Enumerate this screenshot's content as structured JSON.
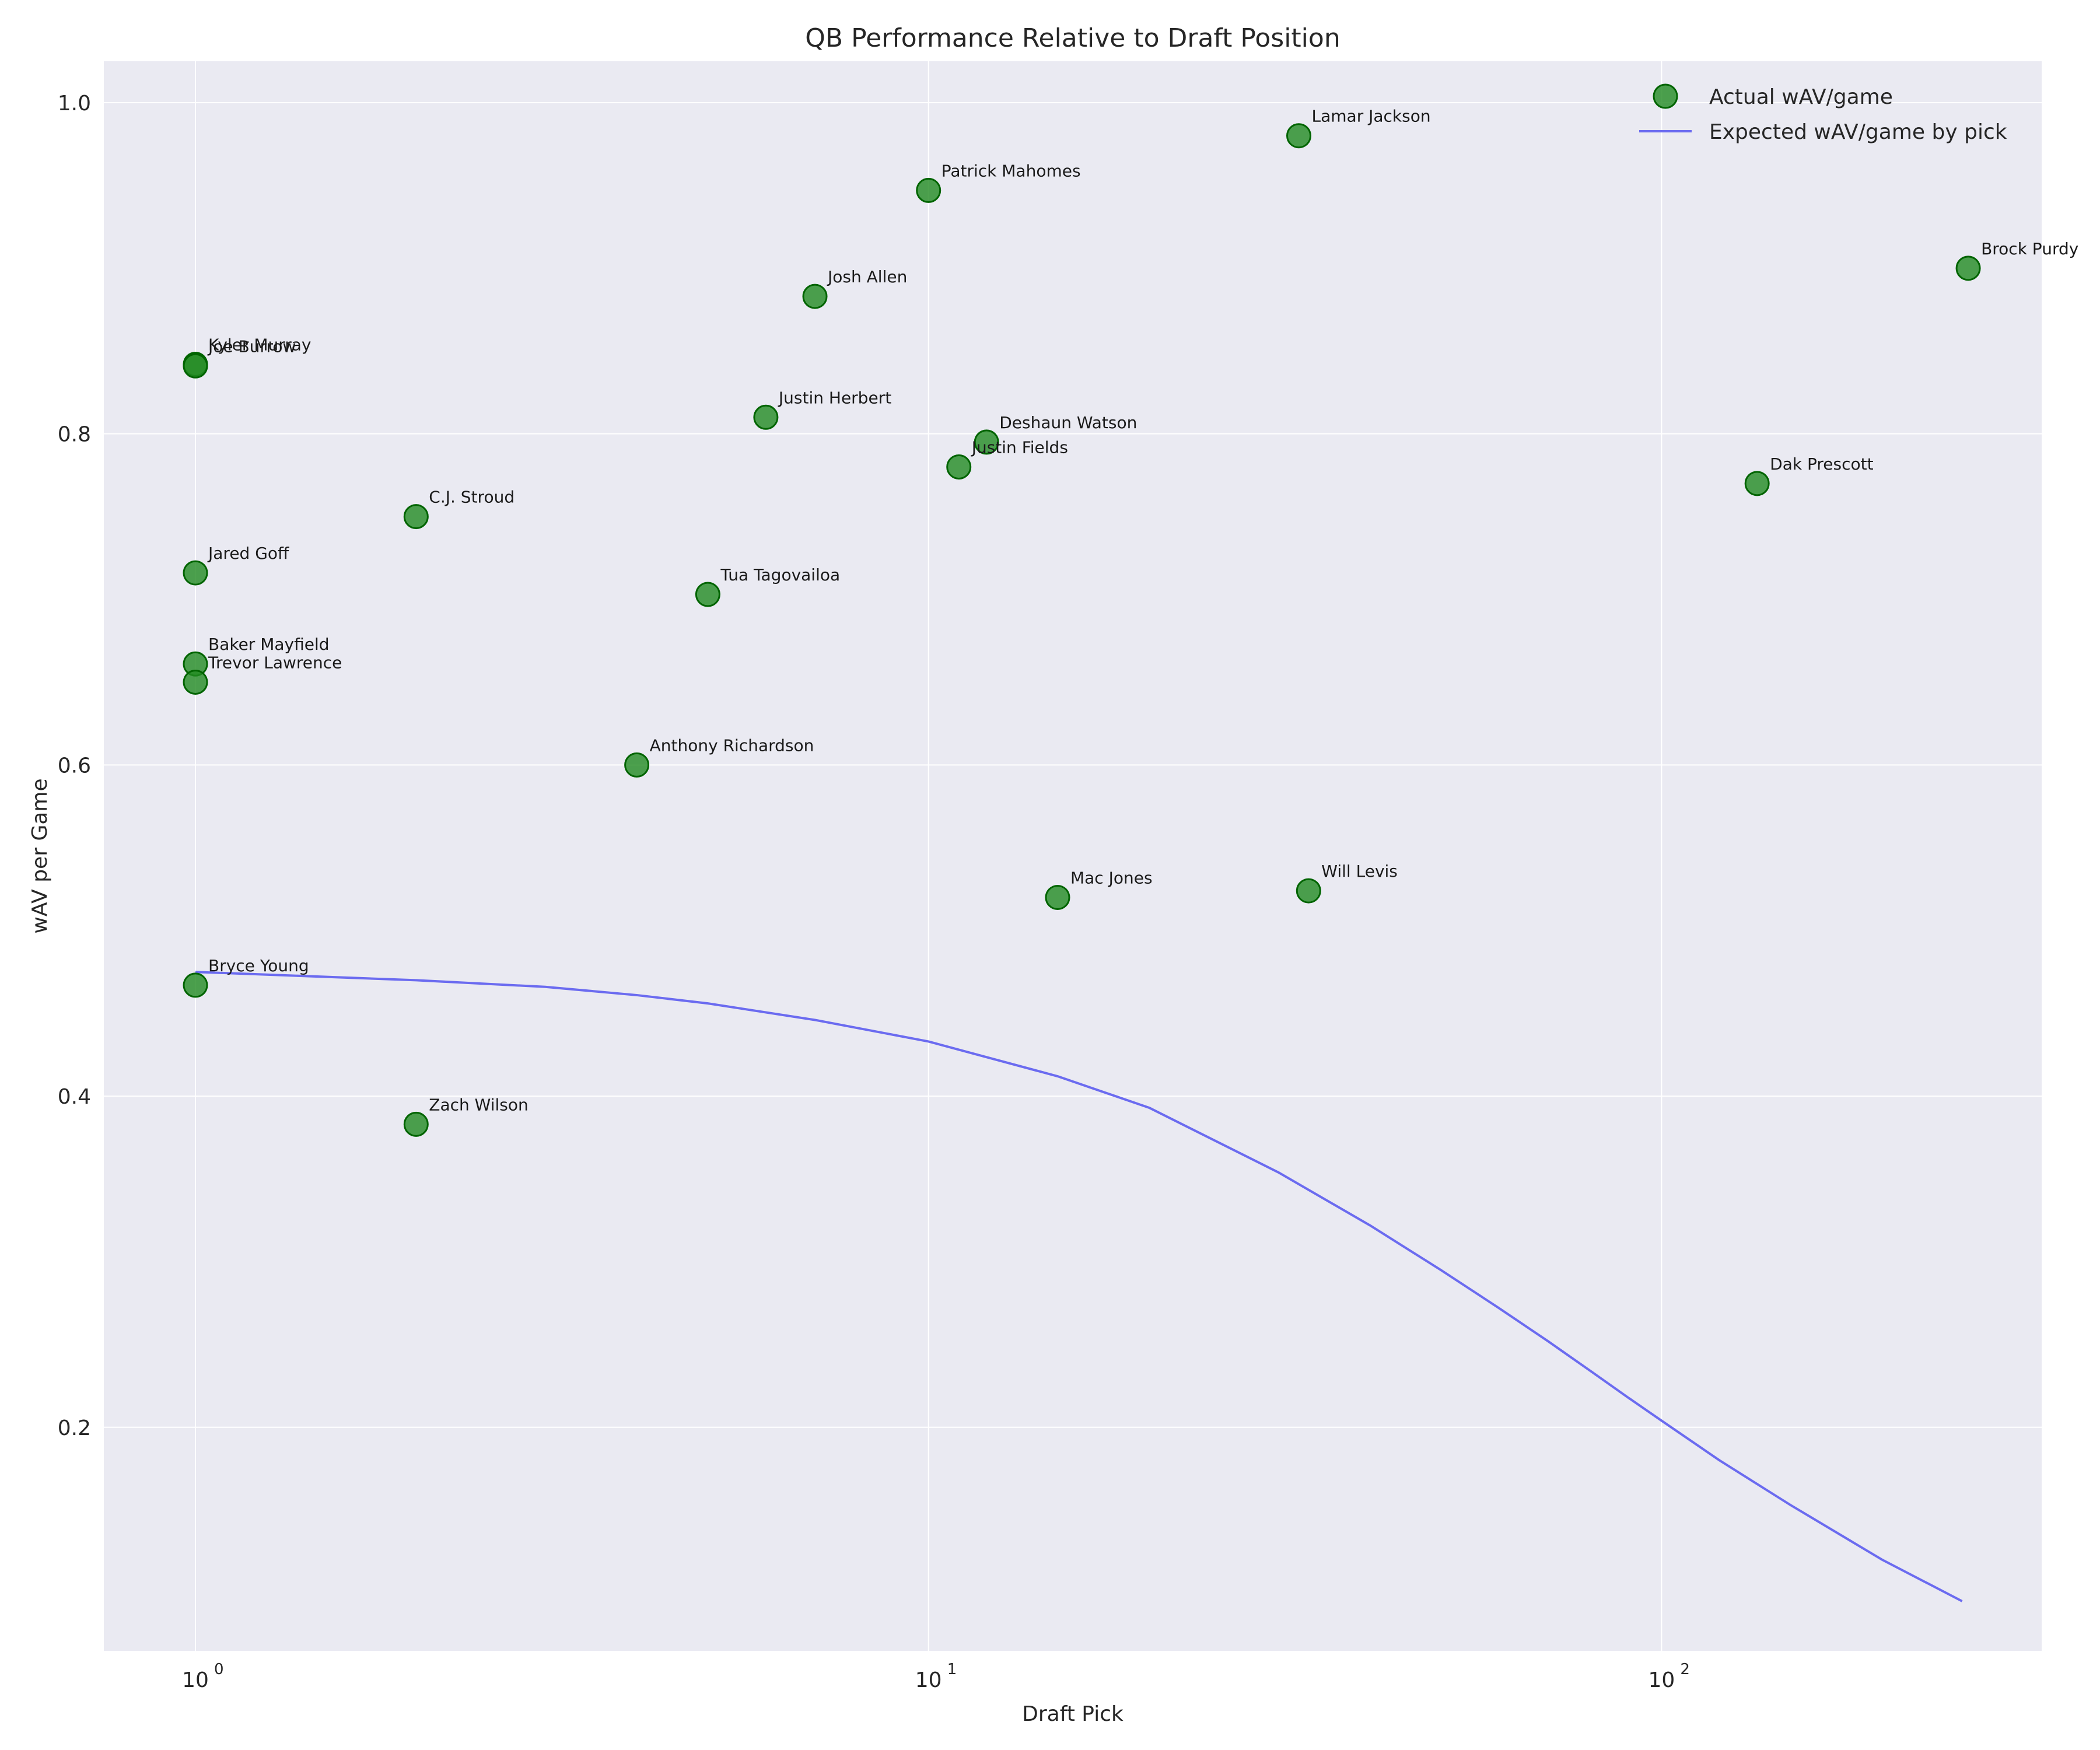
{
  "chart_data": {
    "type": "scatter",
    "title": "QB Performance Relative to Draft Position",
    "xlabel": "Draft Pick",
    "ylabel": "wAV per Game",
    "x_scale": "log",
    "xlim": [
      0.75,
      330
    ],
    "ylim": [
      0.065,
      1.025
    ],
    "x_ticks": [
      {
        "value": 1,
        "base": "10",
        "exp": "0"
      },
      {
        "value": 10,
        "base": "10",
        "exp": "1"
      },
      {
        "value": 100,
        "base": "10",
        "exp": "2"
      }
    ],
    "y_ticks": [
      {
        "value": 0.2,
        "label": "0.2"
      },
      {
        "value": 0.4,
        "label": "0.4"
      },
      {
        "value": 0.6,
        "label": "0.6"
      },
      {
        "value": 0.8,
        "label": "0.8"
      },
      {
        "value": 1.0,
        "label": "1.0"
      }
    ],
    "grid": true,
    "legend_position": "top-right",
    "legend": [
      {
        "label": "Actual wAV/game",
        "kind": "marker"
      },
      {
        "label": "Expected wAV/game by pick",
        "kind": "line"
      }
    ],
    "colors": {
      "marker_fill": "#228B22",
      "marker_edge": "#006400",
      "line": "#6b6bf0",
      "plot_bg": "#eaeaf2",
      "grid": "#ffffff"
    },
    "series": [
      {
        "name": "Actual wAV/game",
        "kind": "scatter",
        "points": [
          {
            "label": "Lamar Jackson",
            "x": 32,
            "y": 0.98
          },
          {
            "label": "Patrick Mahomes",
            "x": 10,
            "y": 0.947
          },
          {
            "label": "Brock Purdy",
            "x": 262,
            "y": 0.9
          },
          {
            "label": "Josh Allen",
            "x": 7,
            "y": 0.883
          },
          {
            "label": "Kyler Murray",
            "x": 1,
            "y": 0.842
          },
          {
            "label": "Joe Burrow",
            "x": 1,
            "y": 0.841
          },
          {
            "label": "Justin Herbert",
            "x": 6,
            "y": 0.81
          },
          {
            "label": "Deshaun Watson",
            "x": 12,
            "y": 0.795
          },
          {
            "label": "Justin Fields",
            "x": 11,
            "y": 0.78
          },
          {
            "label": "Dak Prescott",
            "x": 135,
            "y": 0.77
          },
          {
            "label": "C.J. Stroud",
            "x": 2,
            "y": 0.75
          },
          {
            "label": "Jared Goff",
            "x": 1,
            "y": 0.716
          },
          {
            "label": "Tua Tagovailoa",
            "x": 5,
            "y": 0.703
          },
          {
            "label": "Baker Mayfield",
            "x": 1,
            "y": 0.661
          },
          {
            "label": "Trevor Lawrence",
            "x": 1,
            "y": 0.65
          },
          {
            "label": "Anthony Richardson",
            "x": 4,
            "y": 0.6
          },
          {
            "label": "Will Levis",
            "x": 33,
            "y": 0.524
          },
          {
            "label": "Mac Jones",
            "x": 15,
            "y": 0.52
          },
          {
            "label": "Bryce Young",
            "x": 1,
            "y": 0.467
          },
          {
            "label": "Zach Wilson",
            "x": 2,
            "y": 0.383
          }
        ]
      },
      {
        "name": "Expected wAV/game by pick",
        "kind": "line",
        "x": [
          1,
          2,
          3,
          4,
          5,
          7,
          10,
          15,
          20,
          30,
          40,
          50,
          60,
          70,
          80,
          90,
          100,
          120,
          150,
          200,
          257
        ],
        "y": [
          0.475,
          0.47,
          0.466,
          0.461,
          0.456,
          0.446,
          0.433,
          0.412,
          0.393,
          0.354,
          0.322,
          0.295,
          0.272,
          0.252,
          0.234,
          0.218,
          0.204,
          0.18,
          0.153,
          0.12,
          0.095
        ]
      }
    ]
  }
}
